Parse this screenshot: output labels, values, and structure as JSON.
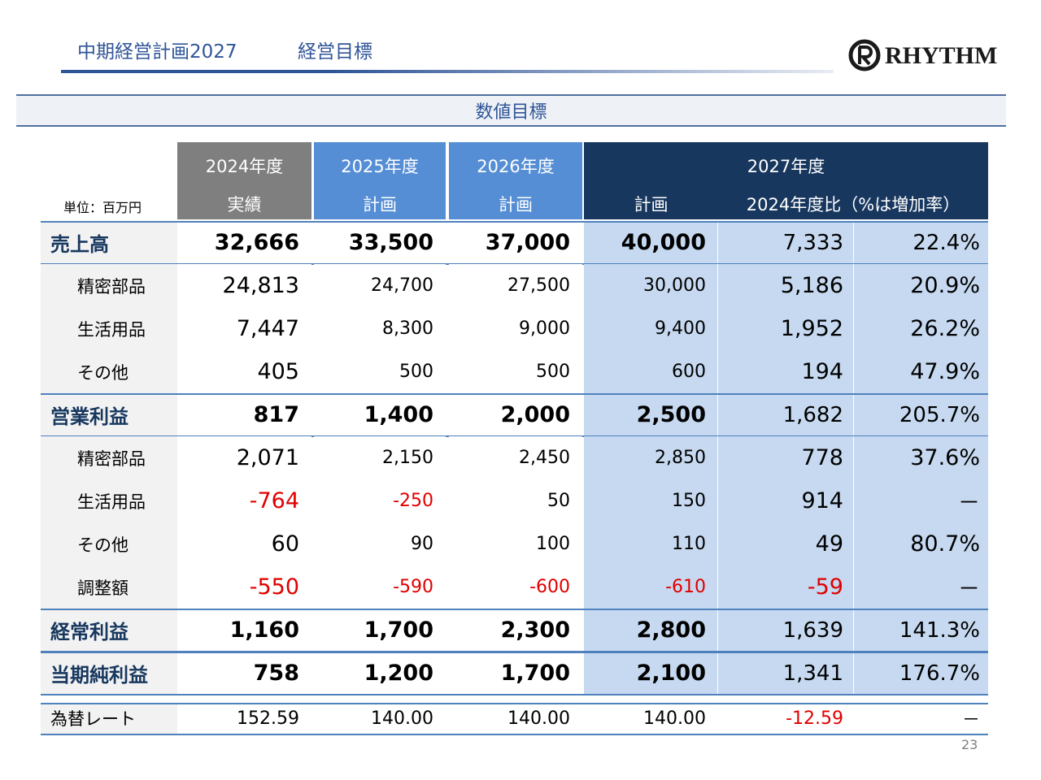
{
  "header": {
    "title": "中期経営計画2027",
    "subtitle": "経営目標",
    "logo": "RHYTHM"
  },
  "section_title": "数値目標",
  "table": {
    "unit": "単位：百万円",
    "year_headers": [
      "2024年度",
      "2025年度",
      "2026年度",
      "2027年度"
    ],
    "sub_headers": [
      "実績",
      "計画",
      "計画",
      "計画",
      "2024年度比（%は増加率）"
    ],
    "rows": [
      [
        "売上高",
        "32,666",
        "33,500",
        "37,000",
        "40,000",
        "7,333",
        "22.4%"
      ],
      [
        "精密部品",
        "24,813",
        "24,700",
        "27,500",
        "30,000",
        "5,186",
        "20.9%"
      ],
      [
        "生活用品",
        "7,447",
        "8,300",
        "9,000",
        "9,400",
        "1,952",
        "26.2%"
      ],
      [
        "その他",
        "405",
        "500",
        "500",
        "600",
        "194",
        "47.9%"
      ],
      [
        "営業利益",
        "817",
        "1,400",
        "2,000",
        "2,500",
        "1,682",
        "205.7%"
      ],
      [
        "精密部品",
        "2,071",
        "2,150",
        "2,450",
        "2,850",
        "778",
        "37.6%"
      ],
      [
        "生活用品",
        "-764",
        "-250",
        "50",
        "150",
        "914",
        "－"
      ],
      [
        "その他",
        "60",
        "90",
        "100",
        "110",
        "49",
        "80.7%"
      ],
      [
        "調整額",
        "-550",
        "-590",
        "-600",
        "-610",
        "-59",
        "－"
      ],
      [
        "経常利益",
        "1,160",
        "1,700",
        "2,300",
        "2,800",
        "1,639",
        "141.3%"
      ],
      [
        "当期純利益",
        "758",
        "1,200",
        "1,700",
        "2,100",
        "1,341",
        "176.7%"
      ],
      [
        "為替レート",
        "152.59",
        "140.00",
        "140.00",
        "140.00",
        "-12.59",
        "－"
      ]
    ]
  },
  "page_number": "23"
}
